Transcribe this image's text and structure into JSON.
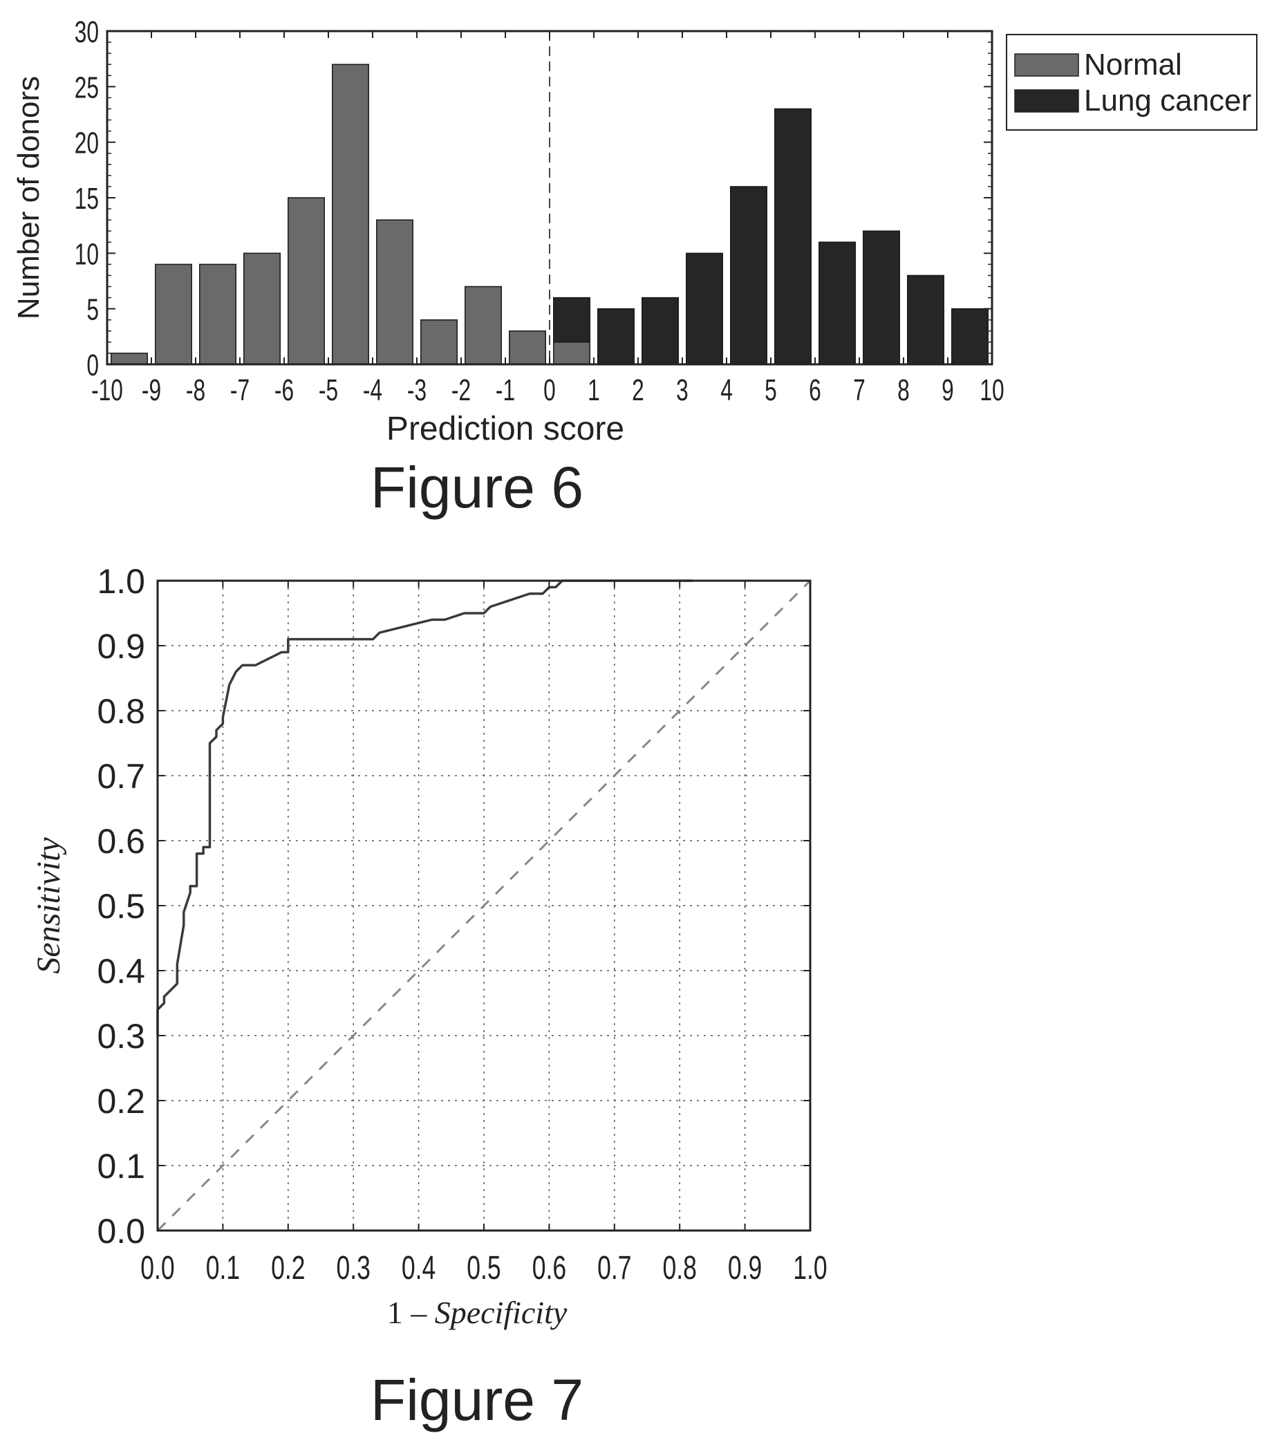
{
  "colors": {
    "normal": "#6a6a6a",
    "lung_cancer": "#262626",
    "axis": "#222222",
    "grid": "#555555",
    "diagonal": "#888888",
    "roc": "#3a3a3a"
  },
  "chart_data": [
    {
      "type": "bar",
      "caption": "Figure 6",
      "xlabel": "Prediction score",
      "ylabel": "Number of donors",
      "xlim": [
        -10,
        10
      ],
      "ylim": [
        0,
        30
      ],
      "xticks": [
        "-10",
        "-9",
        "-8",
        "-7",
        "-6",
        "-5",
        "-4",
        "-3",
        "-2",
        "-1",
        "0",
        "1",
        "2",
        "3",
        "4",
        "5",
        "6",
        "7",
        "8",
        "9",
        "10"
      ],
      "yticks": [
        "0",
        "5",
        "10",
        "15",
        "20",
        "25",
        "30"
      ],
      "threshold_x": 0,
      "legend": {
        "placement": "outside-right-top",
        "entries": [
          "Normal",
          "Lung cancer"
        ]
      },
      "series": [
        {
          "name": "Normal",
          "bins": [
            [
              -10,
              -9
            ],
            [
              -9,
              -8
            ],
            [
              -8,
              -7
            ],
            [
              -7,
              -6
            ],
            [
              -6,
              -5
            ],
            [
              -5,
              -4
            ],
            [
              -4,
              -3
            ],
            [
              -3,
              -2
            ],
            [
              -2,
              -1
            ],
            [
              -1,
              0
            ],
            [
              0,
              1
            ]
          ],
          "values": [
            1,
            9,
            9,
            10,
            15,
            27,
            13,
            4,
            7,
            3,
            2
          ]
        },
        {
          "name": "Lung cancer",
          "bins": [
            [
              0,
              1
            ],
            [
              1,
              2
            ],
            [
              2,
              3
            ],
            [
              3,
              4
            ],
            [
              4,
              5
            ],
            [
              5,
              6
            ],
            [
              6,
              7
            ],
            [
              7,
              8
            ],
            [
              8,
              9
            ],
            [
              9,
              10
            ]
          ],
          "values": [
            6,
            5,
            6,
            10,
            16,
            23,
            11,
            12,
            8,
            5
          ]
        }
      ]
    },
    {
      "type": "line",
      "caption": "Figure 7",
      "xlabel_prefix": "1 – ",
      "xlabel_italic": "Specificity",
      "ylabel": "Sensitivity",
      "xlim": [
        0,
        1
      ],
      "ylim": [
        0,
        1
      ],
      "xticks": [
        "0.0",
        "0.1",
        "0.2",
        "0.3",
        "0.4",
        "0.5",
        "0.6",
        "0.7",
        "0.8",
        "0.9",
        "1.0"
      ],
      "yticks": [
        "0.0",
        "0.1",
        "0.2",
        "0.3",
        "0.4",
        "0.5",
        "0.6",
        "0.7",
        "0.8",
        "0.9",
        "1.0"
      ],
      "grid": true,
      "series": [
        {
          "style": "solid",
          "x": [
            0.0,
            0.0,
            0.01,
            0.01,
            0.02,
            0.02,
            0.03,
            0.03,
            0.04,
            0.04,
            0.05,
            0.05,
            0.06,
            0.06,
            0.07,
            0.07,
            0.08,
            0.08,
            0.09,
            0.09,
            0.1,
            0.1,
            0.11,
            0.12,
            0.13,
            0.15,
            0.17,
            0.19,
            0.2,
            0.2,
            0.25,
            0.3,
            0.33,
            0.34,
            0.34,
            0.38,
            0.38,
            0.42,
            0.44,
            0.47,
            0.5,
            0.51,
            0.54,
            0.57,
            0.59,
            0.6,
            0.61,
            0.62,
            0.63,
            0.7,
            0.75,
            0.8,
            0.82
          ],
          "y": [
            0.3,
            0.34,
            0.35,
            0.36,
            0.37,
            0.37,
            0.38,
            0.41,
            0.47,
            0.49,
            0.52,
            0.53,
            0.53,
            0.58,
            0.58,
            0.59,
            0.59,
            0.75,
            0.76,
            0.77,
            0.78,
            0.79,
            0.84,
            0.86,
            0.87,
            0.87,
            0.88,
            0.89,
            0.89,
            0.91,
            0.91,
            0.91,
            0.91,
            0.92,
            0.92,
            0.93,
            0.93,
            0.94,
            0.94,
            0.95,
            0.95,
            0.96,
            0.97,
            0.98,
            0.98,
            0.99,
            0.99,
            1.0,
            1.0,
            1.0,
            1.0,
            1.0,
            1.0
          ]
        },
        {
          "style": "dashed",
          "x": [
            0,
            1
          ],
          "y": [
            0,
            1
          ]
        }
      ]
    }
  ]
}
